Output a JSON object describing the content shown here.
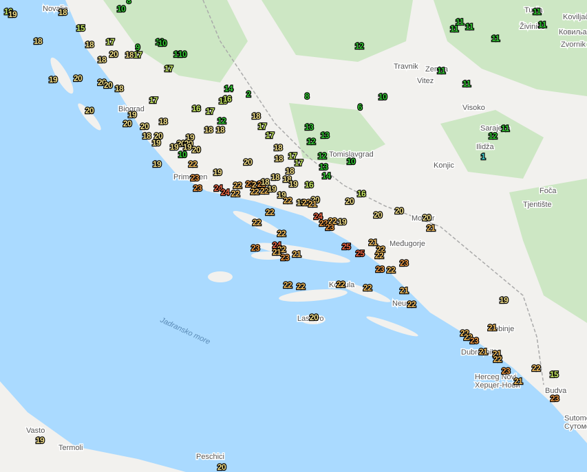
{
  "places": [
    "Novalja",
    "Tuzla",
    "Koviljača",
    "Ковиљача",
    "Živinice",
    "Zvornik",
    "Travnik",
    "Zenica",
    "Vitez",
    "Visoko",
    "Sarajevo",
    "Ilidža",
    "Tomislavgrad",
    "Konjic",
    "Foča",
    "Tjentište",
    "Mostar",
    "Međugorje",
    "Biograd",
    "Primošten",
    "Neum",
    "Trebinje",
    "Dubrovnik",
    "Herceg Novi",
    "Херцег-Нови",
    "Budva",
    "Sutomore",
    "Сутоморе",
    "Korčula",
    "Lastovo",
    "Jadransko more",
    "Vasto",
    "Termoli",
    "Peschici"
  ],
  "temperatures": [
    16,
    19,
    18,
    10,
    8,
    15,
    18,
    17,
    9,
    10,
    10,
    11,
    10,
    18,
    20,
    18,
    17,
    18,
    17,
    12,
    11,
    11,
    11,
    11,
    11,
    11,
    11,
    11,
    19,
    20,
    20,
    20,
    18,
    14,
    2,
    8,
    10,
    6,
    17,
    20,
    16,
    17,
    15,
    16,
    19,
    18,
    20,
    20,
    18,
    12,
    17,
    18,
    18,
    13,
    13,
    17,
    12,
    18,
    20,
    19,
    20,
    20,
    19,
    19,
    19,
    20,
    10,
    18,
    17,
    12,
    10,
    18,
    17,
    19,
    22,
    20,
    13,
    19,
    18,
    14,
    18,
    18,
    19,
    16,
    23,
    23,
    24,
    24,
    22,
    22,
    23,
    21,
    23,
    22,
    22,
    18,
    19,
    19,
    16,
    20,
    22,
    19,
    22,
    20,
    21,
    22,
    20,
    20,
    20,
    24,
    23,
    22,
    19,
    23,
    22,
    21,
    22,
    21,
    25,
    24,
    22,
    23,
    21,
    22,
    22,
    25,
    23,
    21,
    23,
    23,
    22,
    22,
    22,
    22,
    22,
    21,
    22,
    19,
    20,
    21,
    22,
    22,
    23,
    21,
    22,
    21,
    23,
    22,
    15,
    21,
    23,
    19,
    20,
    12,
    11,
    1
  ]
}
